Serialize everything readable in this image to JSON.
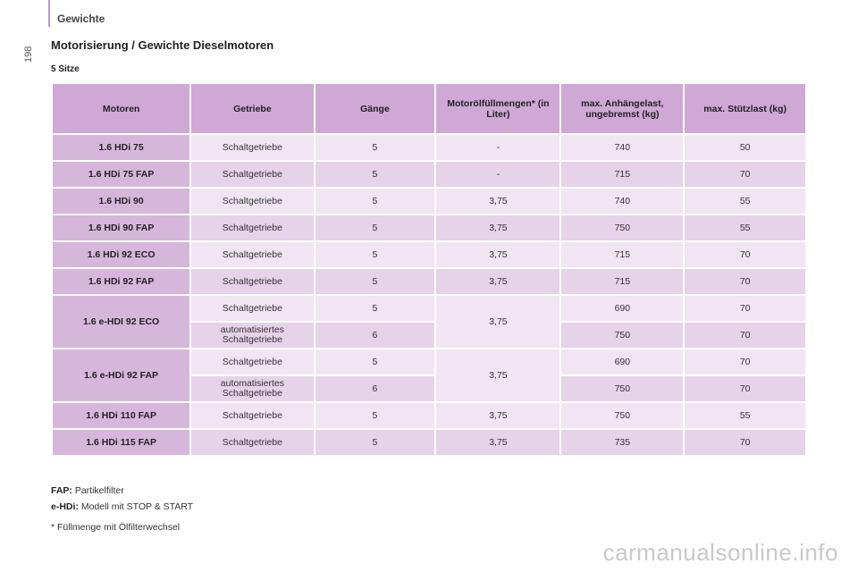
{
  "header": {
    "section": "Gewichte",
    "page_number": "198"
  },
  "heading": "Motorisierung / Gewichte Dieselmotoren",
  "subheading": "5 Sitze",
  "table": {
    "columns": [
      "Motoren",
      "Getriebe",
      "Gänge",
      "Motorölfüllmengen* (in Liter)",
      "max. Anhängelast, ungebremst (kg)",
      "max. Stützlast (kg)"
    ],
    "rows": [
      {
        "motor": "1.6 HDi 75",
        "getriebe": "Schaltgetriebe",
        "gaenge": "5",
        "oel": "-",
        "anhaenge": "740",
        "stuetz": "50"
      },
      {
        "motor": "1.6 HDi 75 FAP",
        "getriebe": "Schaltgetriebe",
        "gaenge": "5",
        "oel": "-",
        "anhaenge": "715",
        "stuetz": "70"
      },
      {
        "motor": "1.6 HDi 90",
        "getriebe": "Schaltgetriebe",
        "gaenge": "5",
        "oel": "3,75",
        "anhaenge": "740",
        "stuetz": "55"
      },
      {
        "motor": "1.6 HDi 90 FAP",
        "getriebe": "Schaltgetriebe",
        "gaenge": "5",
        "oel": "3,75",
        "anhaenge": "750",
        "stuetz": "55"
      },
      {
        "motor": "1.6 HDi 92 ECO",
        "getriebe": "Schaltgetriebe",
        "gaenge": "5",
        "oel": "3,75",
        "anhaenge": "715",
        "stuetz": "70"
      },
      {
        "motor": "1.6 HDi 92 FAP",
        "getriebe": "Schaltgetriebe",
        "gaenge": "5",
        "oel": "3,75",
        "anhaenge": "715",
        "stuetz": "70"
      }
    ],
    "group1": {
      "motor": "1.6 e-HDI 92 ECO",
      "oel": "3,75",
      "sub": [
        {
          "getriebe": "Schaltgetriebe",
          "gaenge": "5",
          "anhaenge": "690",
          "stuetz": "70"
        },
        {
          "getriebe": "automatisiertes Schaltgetriebe",
          "gaenge": "6",
          "anhaenge": "750",
          "stuetz": "70"
        }
      ]
    },
    "group2": {
      "motor": "1.6 e-HDi 92 FAP",
      "oel": "3,75",
      "sub": [
        {
          "getriebe": "Schaltgetriebe",
          "gaenge": "5",
          "anhaenge": "690",
          "stuetz": "70"
        },
        {
          "getriebe": "automatisiertes Schaltgetriebe",
          "gaenge": "6",
          "anhaenge": "750",
          "stuetz": "70"
        }
      ]
    },
    "tail_rows": [
      {
        "motor": "1.6 HDi 110 FAP",
        "getriebe": "Schaltgetriebe",
        "gaenge": "5",
        "oel": "3,75",
        "anhaenge": "750",
        "stuetz": "55"
      },
      {
        "motor": "1.6 HDi 115 FAP",
        "getriebe": "Schaltgetriebe",
        "gaenge": "5",
        "oel": "3,75",
        "anhaenge": "735",
        "stuetz": "70"
      }
    ]
  },
  "footnotes": {
    "fap_term": "FAP:",
    "fap_text": "Partikelfilter",
    "ehdi_term": "e-HDi:",
    "ehdi_text": "Modell mit STOP & START",
    "star_text": "* Füllmenge mit Ölfilterwechsel"
  },
  "watermark": "carmanualsonline.info",
  "colors": {
    "header_bg": "#cfa8d6",
    "motor_bg": "#d7b6dc",
    "row_light": "#f1e5f3",
    "row_dark": "#e6d2e9"
  }
}
